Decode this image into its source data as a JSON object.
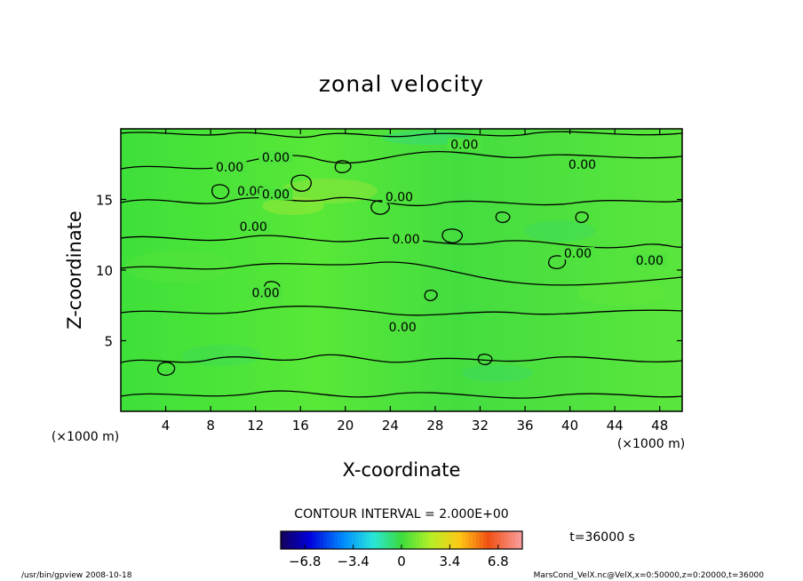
{
  "chart_data": {
    "type": "heatmap",
    "title": "zonal velocity",
    "xlabel": "X-coordinate",
    "ylabel": "Z-coordinate",
    "x_unit": "(×1000 m)",
    "y_unit": "(×1000 m)",
    "xlim": [
      0,
      50
    ],
    "ylim": [
      0,
      20
    ],
    "x_ticks": [
      "4",
      "8",
      "12",
      "16",
      "20",
      "24",
      "28",
      "32",
      "36",
      "40",
      "44",
      "48"
    ],
    "y_ticks": [
      "5",
      "10",
      "15"
    ],
    "contour_interval_text": "CONTOUR INTERVAL = 2.000E+00",
    "contour_labels": [
      {
        "text": "0.00",
        "x": 30.6,
        "z": 18.7
      },
      {
        "text": "0.00",
        "x": 41.1,
        "z": 17.3
      },
      {
        "text": "0.00",
        "x": 13.8,
        "z": 17.8
      },
      {
        "text": "0.00",
        "x": 9.7,
        "z": 17.1
      },
      {
        "text": "0.00",
        "x": 11.6,
        "z": 15.4
      },
      {
        "text": "0.00",
        "x": 13.8,
        "z": 15.2
      },
      {
        "text": "0.00",
        "x": 24.8,
        "z": 15.0
      },
      {
        "text": "0.00",
        "x": 11.8,
        "z": 12.9
      },
      {
        "text": "0.00",
        "x": 25.4,
        "z": 12.0
      },
      {
        "text": "0.00",
        "x": 40.7,
        "z": 11.0
      },
      {
        "text": "0.00",
        "x": 47.1,
        "z": 10.5
      },
      {
        "text": "0.00",
        "x": 12.9,
        "z": 8.2
      },
      {
        "text": "0.00",
        "x": 25.1,
        "z": 5.8
      }
    ],
    "colorbar": {
      "min": -8.5,
      "max": 8.5,
      "tick_labels": [
        "−6.8",
        "−3.4",
        "0",
        "3.4",
        "6.8"
      ],
      "tick_values": [
        -6.8,
        -3.4,
        0,
        3.4,
        6.8
      ]
    },
    "time_label": "t=36000 s"
  },
  "footer": {
    "left": "/usr/bin/gpview   2008-10-18",
    "right": "MarsCond_VelX.nc@VelX,x=0:50000,z=0:20000,t=36000"
  }
}
